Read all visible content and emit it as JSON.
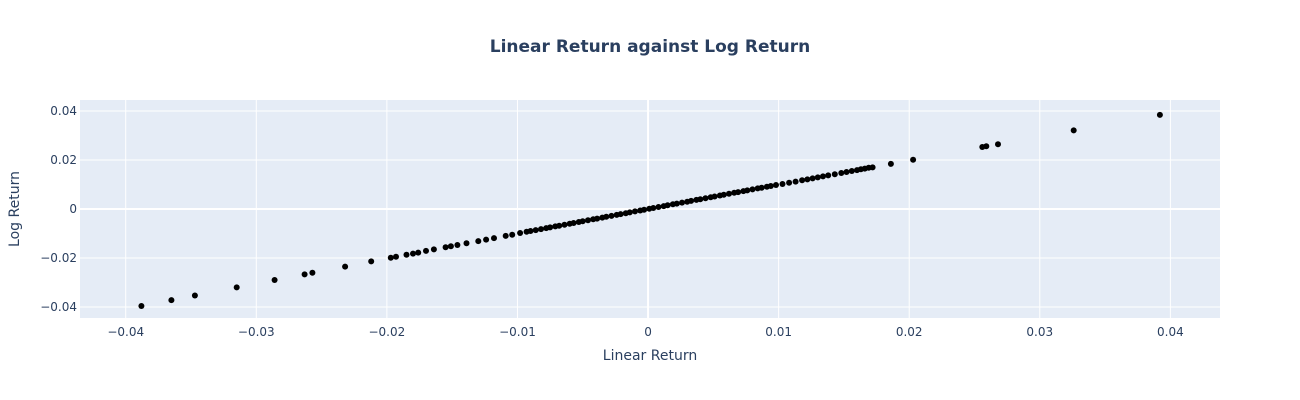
{
  "chart_data": {
    "type": "scatter",
    "title": "Linear Return against Log Return",
    "xlabel": "Linear Return",
    "ylabel": "Log Return",
    "xlim": [
      -0.0435,
      0.0438
    ],
    "ylim": [
      -0.0445,
      0.0445
    ],
    "xticks": [
      -0.04,
      -0.03,
      -0.02,
      -0.01,
      0,
      0.01,
      0.02,
      0.03,
      0.04
    ],
    "xtick_labels": [
      "−0.04",
      "−0.03",
      "−0.02",
      "−0.01",
      "0",
      "0.01",
      "0.02",
      "0.03",
      "0.04"
    ],
    "yticks": [
      -0.04,
      -0.02,
      0,
      0.02,
      0.04
    ],
    "ytick_labels": [
      "−0.04",
      "−0.02",
      "0",
      "0.02",
      "0.04"
    ],
    "grid": true,
    "colors": {
      "background": "#e5ecf6",
      "grid": "#ffffff",
      "marker": "#000000",
      "text": "#2a3f5f"
    },
    "x": [
      -0.0388,
      -0.0365,
      -0.0347,
      -0.0315,
      -0.0286,
      -0.0263,
      -0.0257,
      -0.0232,
      -0.0212,
      -0.0197,
      -0.0193,
      -0.0185,
      -0.018,
      -0.0176,
      -0.017,
      -0.0164,
      -0.0155,
      -0.0151,
      -0.0146,
      -0.0139,
      -0.013,
      -0.0124,
      -0.0118,
      -0.0109,
      -0.0104,
      -0.0098,
      -0.0093,
      -0.009,
      -0.0086,
      -0.0082,
      -0.0078,
      -0.0075,
      -0.0071,
      -0.0068,
      -0.0064,
      -0.006,
      -0.0057,
      -0.0053,
      -0.005,
      -0.0046,
      -0.0042,
      -0.0039,
      -0.0035,
      -0.0032,
      -0.0028,
      -0.0024,
      -0.0021,
      -0.0017,
      -0.0014,
      -0.001,
      -0.0006,
      -0.0003,
      0.0001,
      0.0004,
      0.0008,
      0.0012,
      0.0015,
      0.0019,
      0.0022,
      0.0026,
      0.003,
      0.0033,
      0.0037,
      0.004,
      0.0044,
      0.0048,
      0.0051,
      0.0055,
      0.0058,
      0.0062,
      0.0066,
      0.0069,
      0.0073,
      0.0076,
      0.008,
      0.0084,
      0.0087,
      0.0091,
      0.0094,
      0.0098,
      0.0103,
      0.0108,
      0.0113,
      0.0118,
      0.0122,
      0.0126,
      0.013,
      0.0134,
      0.0138,
      0.0143,
      0.0148,
      0.0152,
      0.0156,
      0.016,
      0.0163,
      0.0166,
      0.0169,
      0.0172,
      0.0186,
      0.0203,
      0.0256,
      0.0259,
      0.0268,
      0.0326,
      0.0392
    ],
    "y": [
      -0.0396,
      -0.0372,
      -0.0353,
      -0.032,
      -0.029,
      -0.0267,
      -0.026,
      -0.0235,
      -0.0214,
      -0.0199,
      -0.0195,
      -0.0187,
      -0.0182,
      -0.0178,
      -0.0171,
      -0.0165,
      -0.0156,
      -0.0152,
      -0.0147,
      -0.014,
      -0.0131,
      -0.0125,
      -0.0119,
      -0.011,
      -0.0105,
      -0.0098,
      -0.0093,
      -0.009,
      -0.0086,
      -0.0082,
      -0.0078,
      -0.0075,
      -0.0071,
      -0.0068,
      -0.0064,
      -0.006,
      -0.0057,
      -0.0053,
      -0.005,
      -0.0046,
      -0.0042,
      -0.0039,
      -0.0035,
      -0.0032,
      -0.0028,
      -0.0024,
      -0.0021,
      -0.0017,
      -0.0014,
      -0.001,
      -0.0006,
      -0.0003,
      0.0001,
      0.0004,
      0.0008,
      0.0012,
      0.0015,
      0.0019,
      0.0022,
      0.0026,
      0.003,
      0.0033,
      0.0037,
      0.004,
      0.0044,
      0.0048,
      0.0051,
      0.0055,
      0.0058,
      0.0062,
      0.0066,
      0.0069,
      0.0073,
      0.0076,
      0.008,
      0.0084,
      0.0087,
      0.0091,
      0.0094,
      0.0098,
      0.0102,
      0.0107,
      0.0112,
      0.0117,
      0.0121,
      0.0125,
      0.0129,
      0.0133,
      0.0137,
      0.0142,
      0.0147,
      0.0151,
      0.0155,
      0.0159,
      0.0162,
      0.0165,
      0.0168,
      0.017,
      0.0184,
      0.0201,
      0.0253,
      0.0256,
      0.0264,
      0.0321,
      0.0384
    ]
  }
}
